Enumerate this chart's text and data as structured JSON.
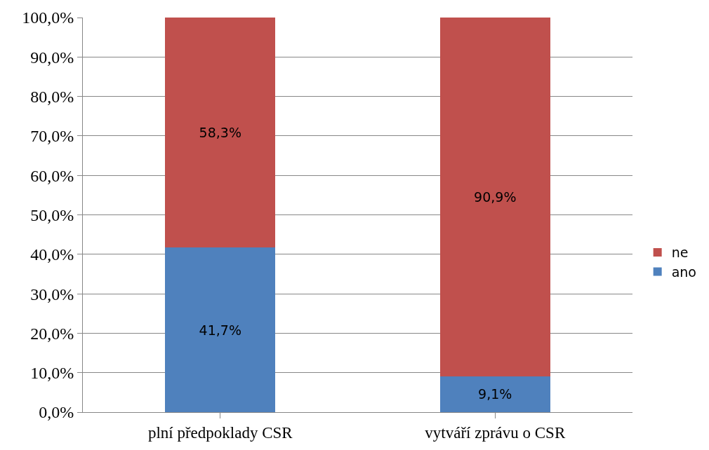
{
  "chart_data": {
    "type": "bar",
    "stacked": true,
    "categories": [
      "plní předpoklady CSR",
      "vytváří zprávu o CSR"
    ],
    "series": [
      {
        "name": "ano",
        "color": "#4f81bd",
        "values": [
          41.7,
          9.1
        ],
        "value_labels": [
          "41,7%",
          "9,1%"
        ]
      },
      {
        "name": "ne",
        "color": "#c0504d",
        "values": [
          58.3,
          90.9
        ],
        "value_labels": [
          "58,3%",
          "90,9%"
        ]
      }
    ],
    "ylim": [
      0,
      100
    ],
    "yticks": [
      {
        "value": 0,
        "label": "0,0%"
      },
      {
        "value": 10,
        "label": "10,0%"
      },
      {
        "value": 20,
        "label": "20,0%"
      },
      {
        "value": 30,
        "label": "30,0%"
      },
      {
        "value": 40,
        "label": "40,0%"
      },
      {
        "value": 50,
        "label": "50,0%"
      },
      {
        "value": 60,
        "label": "60,0%"
      },
      {
        "value": 70,
        "label": "70,0%"
      },
      {
        "value": 80,
        "label": "80,0%"
      },
      {
        "value": 90,
        "label": "90,0%"
      },
      {
        "value": 100,
        "label": "100,0%"
      }
    ],
    "grid": "y",
    "legend": "right"
  }
}
